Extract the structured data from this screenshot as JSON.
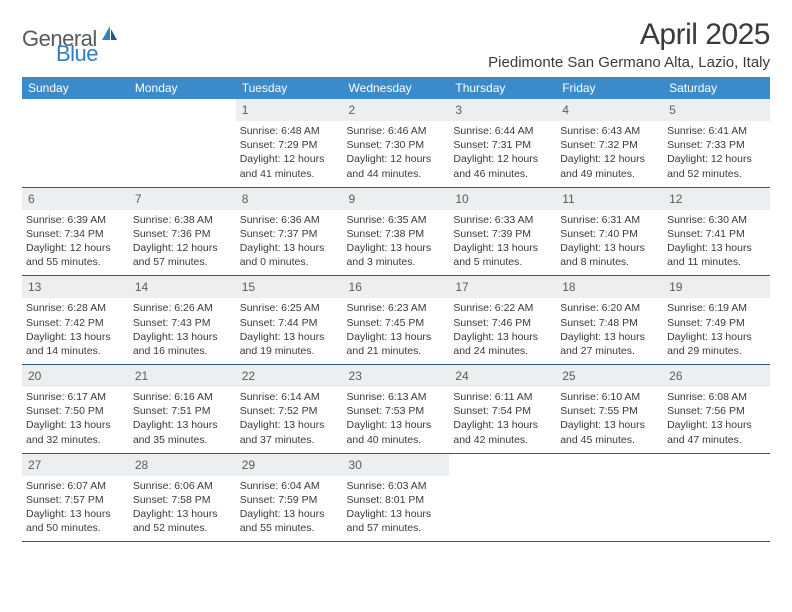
{
  "brand": {
    "text1": "General",
    "text2": "Blue"
  },
  "title": "April 2025",
  "location": "Piedimonte San Germano Alta, Lazio, Italy",
  "colors": {
    "header_bg": "#3b8bca",
    "header_text": "#ffffff",
    "daynum_bg": "#eceeef",
    "cell_border": "#2d5a87",
    "body_text": "#3a3a3a",
    "brand_gray": "#555a5e",
    "brand_blue": "#2f7fc1"
  },
  "daysOfWeek": [
    "Sunday",
    "Monday",
    "Tuesday",
    "Wednesday",
    "Thursday",
    "Friday",
    "Saturday"
  ],
  "weeks": [
    [
      null,
      null,
      {
        "n": "1",
        "sr": "Sunrise: 6:48 AM",
        "ss": "Sunset: 7:29 PM",
        "dl": "Daylight: 12 hours and 41 minutes."
      },
      {
        "n": "2",
        "sr": "Sunrise: 6:46 AM",
        "ss": "Sunset: 7:30 PM",
        "dl": "Daylight: 12 hours and 44 minutes."
      },
      {
        "n": "3",
        "sr": "Sunrise: 6:44 AM",
        "ss": "Sunset: 7:31 PM",
        "dl": "Daylight: 12 hours and 46 minutes."
      },
      {
        "n": "4",
        "sr": "Sunrise: 6:43 AM",
        "ss": "Sunset: 7:32 PM",
        "dl": "Daylight: 12 hours and 49 minutes."
      },
      {
        "n": "5",
        "sr": "Sunrise: 6:41 AM",
        "ss": "Sunset: 7:33 PM",
        "dl": "Daylight: 12 hours and 52 minutes."
      }
    ],
    [
      {
        "n": "6",
        "sr": "Sunrise: 6:39 AM",
        "ss": "Sunset: 7:34 PM",
        "dl": "Daylight: 12 hours and 55 minutes."
      },
      {
        "n": "7",
        "sr": "Sunrise: 6:38 AM",
        "ss": "Sunset: 7:36 PM",
        "dl": "Daylight: 12 hours and 57 minutes."
      },
      {
        "n": "8",
        "sr": "Sunrise: 6:36 AM",
        "ss": "Sunset: 7:37 PM",
        "dl": "Daylight: 13 hours and 0 minutes."
      },
      {
        "n": "9",
        "sr": "Sunrise: 6:35 AM",
        "ss": "Sunset: 7:38 PM",
        "dl": "Daylight: 13 hours and 3 minutes."
      },
      {
        "n": "10",
        "sr": "Sunrise: 6:33 AM",
        "ss": "Sunset: 7:39 PM",
        "dl": "Daylight: 13 hours and 5 minutes."
      },
      {
        "n": "11",
        "sr": "Sunrise: 6:31 AM",
        "ss": "Sunset: 7:40 PM",
        "dl": "Daylight: 13 hours and 8 minutes."
      },
      {
        "n": "12",
        "sr": "Sunrise: 6:30 AM",
        "ss": "Sunset: 7:41 PM",
        "dl": "Daylight: 13 hours and 11 minutes."
      }
    ],
    [
      {
        "n": "13",
        "sr": "Sunrise: 6:28 AM",
        "ss": "Sunset: 7:42 PM",
        "dl": "Daylight: 13 hours and 14 minutes."
      },
      {
        "n": "14",
        "sr": "Sunrise: 6:26 AM",
        "ss": "Sunset: 7:43 PM",
        "dl": "Daylight: 13 hours and 16 minutes."
      },
      {
        "n": "15",
        "sr": "Sunrise: 6:25 AM",
        "ss": "Sunset: 7:44 PM",
        "dl": "Daylight: 13 hours and 19 minutes."
      },
      {
        "n": "16",
        "sr": "Sunrise: 6:23 AM",
        "ss": "Sunset: 7:45 PM",
        "dl": "Daylight: 13 hours and 21 minutes."
      },
      {
        "n": "17",
        "sr": "Sunrise: 6:22 AM",
        "ss": "Sunset: 7:46 PM",
        "dl": "Daylight: 13 hours and 24 minutes."
      },
      {
        "n": "18",
        "sr": "Sunrise: 6:20 AM",
        "ss": "Sunset: 7:48 PM",
        "dl": "Daylight: 13 hours and 27 minutes."
      },
      {
        "n": "19",
        "sr": "Sunrise: 6:19 AM",
        "ss": "Sunset: 7:49 PM",
        "dl": "Daylight: 13 hours and 29 minutes."
      }
    ],
    [
      {
        "n": "20",
        "sr": "Sunrise: 6:17 AM",
        "ss": "Sunset: 7:50 PM",
        "dl": "Daylight: 13 hours and 32 minutes."
      },
      {
        "n": "21",
        "sr": "Sunrise: 6:16 AM",
        "ss": "Sunset: 7:51 PM",
        "dl": "Daylight: 13 hours and 35 minutes."
      },
      {
        "n": "22",
        "sr": "Sunrise: 6:14 AM",
        "ss": "Sunset: 7:52 PM",
        "dl": "Daylight: 13 hours and 37 minutes."
      },
      {
        "n": "23",
        "sr": "Sunrise: 6:13 AM",
        "ss": "Sunset: 7:53 PM",
        "dl": "Daylight: 13 hours and 40 minutes."
      },
      {
        "n": "24",
        "sr": "Sunrise: 6:11 AM",
        "ss": "Sunset: 7:54 PM",
        "dl": "Daylight: 13 hours and 42 minutes."
      },
      {
        "n": "25",
        "sr": "Sunrise: 6:10 AM",
        "ss": "Sunset: 7:55 PM",
        "dl": "Daylight: 13 hours and 45 minutes."
      },
      {
        "n": "26",
        "sr": "Sunrise: 6:08 AM",
        "ss": "Sunset: 7:56 PM",
        "dl": "Daylight: 13 hours and 47 minutes."
      }
    ],
    [
      {
        "n": "27",
        "sr": "Sunrise: 6:07 AM",
        "ss": "Sunset: 7:57 PM",
        "dl": "Daylight: 13 hours and 50 minutes."
      },
      {
        "n": "28",
        "sr": "Sunrise: 6:06 AM",
        "ss": "Sunset: 7:58 PM",
        "dl": "Daylight: 13 hours and 52 minutes."
      },
      {
        "n": "29",
        "sr": "Sunrise: 6:04 AM",
        "ss": "Sunset: 7:59 PM",
        "dl": "Daylight: 13 hours and 55 minutes."
      },
      {
        "n": "30",
        "sr": "Sunrise: 6:03 AM",
        "ss": "Sunset: 8:01 PM",
        "dl": "Daylight: 13 hours and 57 minutes."
      },
      null,
      null,
      null
    ]
  ]
}
